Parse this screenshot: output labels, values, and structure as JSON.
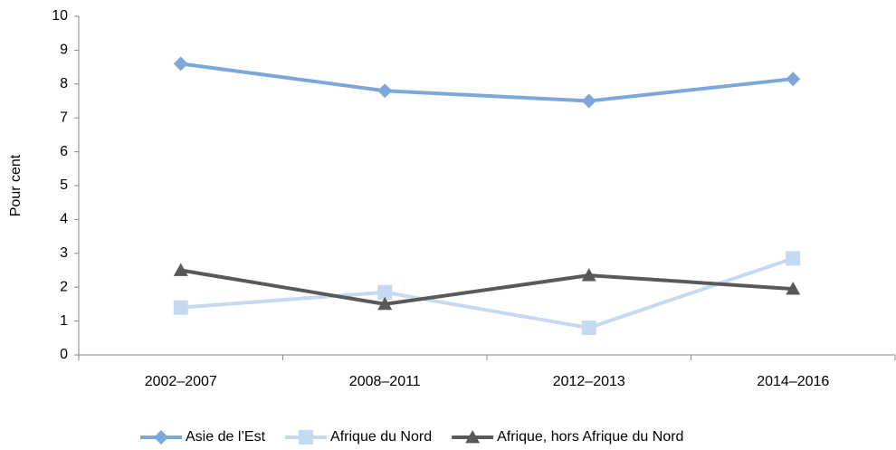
{
  "chart_data": {
    "type": "line",
    "y_label": "Pour cent",
    "categories": [
      "2002–2007",
      "2008–2011",
      "2012–2013",
      "2014–2016"
    ],
    "series": [
      {
        "name": "Asie de l’Est",
        "color": "#7da7d9",
        "marker": "diamond",
        "values": [
          8.6,
          7.8,
          7.5,
          8.15
        ]
      },
      {
        "name": "Afrique du Nord",
        "color": "#c5d9f1",
        "marker": "square",
        "values": [
          1.4,
          1.85,
          0.8,
          2.85
        ]
      },
      {
        "name": "Afrique, hors Afrique du Nord",
        "color": "#595959",
        "marker": "triangle",
        "values": [
          2.5,
          1.5,
          2.35,
          1.95
        ]
      }
    ],
    "ylim": [
      0,
      10
    ],
    "yticks": [
      0,
      1,
      2,
      3,
      4,
      5,
      6,
      7,
      8,
      9,
      10
    ],
    "grid": false,
    "legend": "bottom"
  }
}
